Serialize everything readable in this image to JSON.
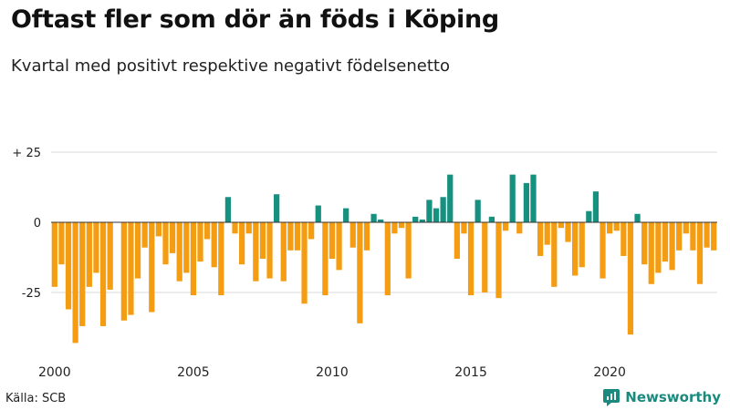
{
  "header": {
    "title": "Oftast fler som dör än föds i Köping",
    "subtitle": "Kvartal med positivt respektive negativt födelsenetto"
  },
  "footer": {
    "source": "Källa: SCB",
    "brand": "Newsworthy"
  },
  "colors": {
    "positive": "#16907f",
    "negative": "#f49d12",
    "grid": "#d8d8d8",
    "zero_line": "#333333"
  },
  "chart_data": {
    "type": "bar",
    "title": "Oftast fler som dör än föds i Köping",
    "subtitle": "Kvartal med positivt respektive negativt födelsenetto",
    "xlabel": "",
    "ylabel": "",
    "ylim": [
      -45,
      25
    ],
    "yticks": [
      {
        "value": 25,
        "label": "+ 25"
      },
      {
        "value": 0,
        "label": "0"
      },
      {
        "value": -25,
        "label": "-25"
      }
    ],
    "xticks": [
      {
        "year": 2000,
        "label": "2000"
      },
      {
        "year": 2005,
        "label": "2005"
      },
      {
        "year": 2010,
        "label": "2010"
      },
      {
        "year": 2015,
        "label": "2015"
      },
      {
        "year": 2020,
        "label": "2020"
      }
    ],
    "start_year": 2000,
    "start_quarter": 1,
    "values": [
      -23,
      -15,
      -31,
      -43,
      -37,
      -23,
      -18,
      -37,
      -24,
      0,
      -35,
      -33,
      -20,
      -9,
      -32,
      -5,
      -15,
      -11,
      -21,
      -18,
      -26,
      -14,
      -6,
      -16,
      -26,
      9,
      -4,
      -15,
      -4,
      -21,
      -13,
      -20,
      10,
      -21,
      -10,
      -10,
      -29,
      -6,
      6,
      -26,
      -13,
      -17,
      5,
      -9,
      -36,
      -10,
      3,
      1,
      -26,
      -4,
      -2,
      -20,
      2,
      1,
      8,
      5,
      9,
      17,
      -13,
      -4,
      -26,
      8,
      -25,
      2,
      -27,
      -3,
      17,
      -4,
      14,
      17,
      -12,
      -8,
      -23,
      -2,
      -7,
      -19,
      -16,
      4,
      11,
      -20,
      -4,
      -3,
      -12,
      -40,
      3,
      -15,
      -22,
      -18,
      -14,
      -17,
      -10,
      -4,
      -10,
      -22,
      -9,
      -10
    ]
  }
}
